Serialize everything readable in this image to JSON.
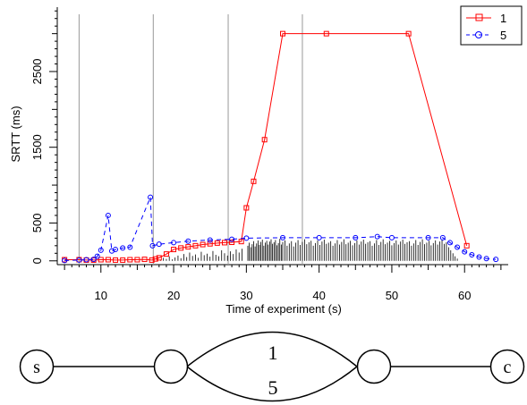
{
  "chart_data": {
    "type": "line",
    "title": "",
    "xlabel": "Time of experiment (s)",
    "ylabel": "SRTT (ms)",
    "xlim": [
      4,
      66
    ],
    "ylim": [
      -50,
      3350
    ],
    "x_ticks": [
      10,
      20,
      30,
      40,
      50,
      60
    ],
    "y_ticks": [
      0,
      500,
      1500,
      2500
    ],
    "grid": false,
    "legend_position": "top-right",
    "vertical_lines": [
      7,
      17.2,
      27.5,
      37.7
    ],
    "colors": {
      "s1": "#ff0000",
      "s5": "#0000ff"
    },
    "series": [
      {
        "name": "1",
        "line": "solid",
        "marker": "square",
        "color": "#ff0000",
        "x": [
          5,
          7,
          8,
          9,
          10,
          11,
          12,
          13,
          14,
          15,
          16,
          17,
          17.5,
          18,
          19,
          20,
          21,
          22,
          23,
          24,
          25,
          26,
          27,
          28,
          29.3,
          30,
          31,
          32.5,
          35,
          41,
          52.3,
          60.3
        ],
        "y": [
          15,
          15,
          10,
          10,
          15,
          15,
          10,
          10,
          15,
          15,
          20,
          10,
          25,
          40,
          90,
          150,
          170,
          185,
          200,
          215,
          225,
          235,
          240,
          245,
          255,
          700,
          1050,
          1600,
          3000,
          3000,
          3000,
          200
        ]
      },
      {
        "name": "5",
        "line": "dashed",
        "marker": "circle",
        "color": "#0000ff",
        "x": [
          5,
          7,
          8,
          9,
          9.5,
          10,
          11,
          11.5,
          12,
          13,
          14,
          16.8,
          17.1,
          18,
          20,
          22,
          25,
          28,
          30,
          35,
          40,
          45,
          48,
          50,
          55,
          57,
          58,
          59,
          60,
          61,
          62,
          63,
          64.3
        ],
        "y": [
          5,
          10,
          15,
          20,
          60,
          140,
          600,
          130,
          150,
          170,
          180,
          840,
          200,
          220,
          240,
          260,
          275,
          285,
          300,
          305,
          305,
          305,
          320,
          305,
          305,
          305,
          240,
          180,
          120,
          80,
          50,
          30,
          20
        ]
      }
    ],
    "rug": {
      "color": "#000000",
      "x": [
        17.8,
        18.2,
        18.6,
        19.0,
        19.4,
        19.8,
        20.2,
        20.6,
        21.0,
        21.4,
        21.8,
        22.2,
        22.6,
        23.0,
        23.4,
        23.8,
        24.2,
        24.6,
        25.0,
        25.4,
        25.8,
        26.2,
        26.6,
        27.0,
        27.4,
        27.8,
        28.2,
        28.6,
        29.0,
        29.4,
        30.2,
        30.4,
        30.6,
        30.8,
        31.0,
        31.2,
        31.4,
        31.6,
        31.8,
        32.0,
        32.2,
        32.4,
        32.6,
        32.8,
        33.0,
        33.2,
        33.4,
        33.6,
        33.8,
        34.0,
        34.2,
        34.4,
        34.6,
        34.8,
        35.0,
        35.3,
        35.6,
        35.9,
        36.2,
        36.5,
        36.8,
        37.1,
        37.4,
        37.7,
        38.0,
        38.3,
        38.6,
        38.9,
        39.2,
        39.5,
        39.8,
        40.1,
        40.4,
        40.7,
        41.0,
        41.3,
        41.6,
        41.9,
        42.2,
        42.5,
        42.8,
        43.1,
        43.4,
        43.7,
        44.0,
        44.3,
        44.6,
        44.9,
        45.2,
        45.5,
        45.8,
        46.1,
        46.4,
        46.7,
        47.0,
        47.3,
        47.6,
        47.9,
        48.2,
        48.5,
        48.8,
        49.1,
        49.4,
        49.7,
        50.0,
        50.3,
        50.6,
        50.9,
        51.2,
        51.5,
        51.8,
        52.1,
        52.4,
        52.7,
        53.0,
        53.3,
        53.6,
        53.9,
        54.2,
        54.5,
        54.8,
        55.1,
        55.4,
        55.7,
        56.0,
        56.3,
        56.6,
        56.9,
        57.2,
        57.5,
        57.8,
        58.1,
        58.4,
        58.7,
        59.0
      ],
      "heights": [
        30,
        15,
        40,
        25,
        60,
        20,
        45,
        70,
        35,
        90,
        50,
        110,
        65,
        85,
        40,
        120,
        75,
        95,
        55,
        130,
        80,
        60,
        140,
        100,
        70,
        125,
        90,
        150,
        110,
        160,
        200,
        240,
        180,
        220,
        260,
        190,
        230,
        270,
        210,
        250,
        280,
        200,
        240,
        265,
        215,
        255,
        285,
        225,
        245,
        275,
        205,
        235,
        290,
        215,
        250,
        270,
        200,
        230,
        260,
        190,
        240,
        275,
        210,
        250,
        285,
        220,
        245,
        265,
        200,
        235,
        270,
        210,
        255,
        280,
        225,
        240,
        260,
        200,
        230,
        275,
        215,
        250,
        285,
        220,
        240,
        265,
        205,
        235,
        270,
        215,
        255,
        280,
        225,
        245,
        260,
        200,
        230,
        275,
        210,
        250,
        285,
        220,
        240,
        265,
        205,
        235,
        270,
        215,
        255,
        280,
        225,
        245,
        260,
        200,
        230,
        275,
        210,
        250,
        285,
        220,
        240,
        265,
        205,
        235,
        270,
        215,
        255,
        280,
        225,
        245,
        180,
        140,
        100,
        60,
        30
      ]
    }
  },
  "diagram": {
    "nodes": [
      {
        "id": "s",
        "label": "s"
      },
      {
        "id": "n1",
        "label": ""
      },
      {
        "id": "n2",
        "label": ""
      },
      {
        "id": "c",
        "label": "c"
      }
    ],
    "links": [
      {
        "label": "1"
      },
      {
        "label": "5"
      }
    ]
  }
}
